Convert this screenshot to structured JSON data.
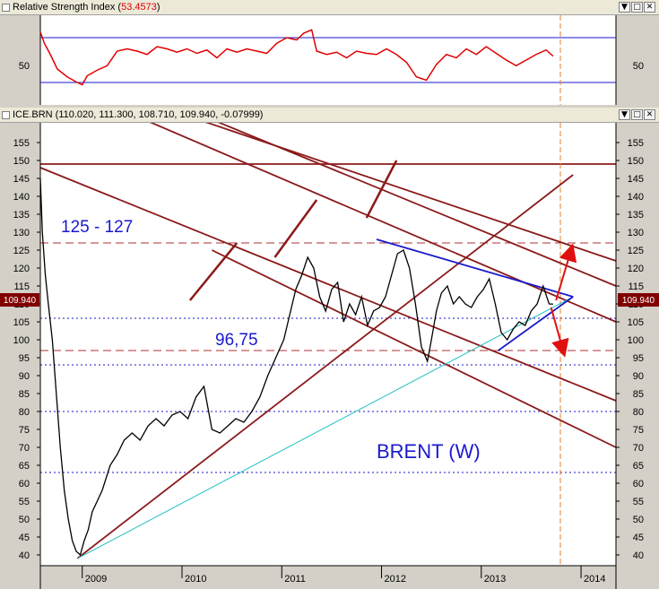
{
  "rsi_pane": {
    "title_prefix": "Relative Strength Index (",
    "title_value": "53.4573",
    "title_suffix": ")",
    "level_label": "50"
  },
  "price_pane": {
    "title": "ICE.BRN (110.020, 111.300, 108.710, 109.940, -0.07999)",
    "last_price_label": "109.940",
    "annotations": {
      "resistance": "125 - 127",
      "support": "96,75",
      "name": "BRENT (W)"
    }
  },
  "window_buttons": [
    "▼",
    "□",
    "✕"
  ],
  "colors": {
    "price": "#000000",
    "rsi": "#e00000",
    "channel": "#8b1a1a",
    "triangle": "#1a1acc",
    "support_line": "#20c0c0",
    "annotation_text": "#1a1acc",
    "arrow": "#e01010",
    "dashed_vertical": "#e08030"
  },
  "chart_data": [
    {
      "type": "line",
      "name": "Relative Strength Index",
      "current_value": 53.4573,
      "y_tick_labels": [
        "50"
      ],
      "reference_levels": [
        70,
        30
      ],
      "series": [
        {
          "name": "RSI",
          "x": [
            2008.58,
            2008.62,
            2008.68,
            2008.75,
            2008.85,
            2008.95,
            2009.0,
            2009.05,
            2009.15,
            2009.25,
            2009.35,
            2009.45,
            2009.55,
            2009.65,
            2009.75,
            2009.85,
            2009.95,
            2010.05,
            2010.15,
            2010.25,
            2010.35,
            2010.45,
            2010.55,
            2010.65,
            2010.75,
            2010.85,
            2010.95,
            2011.05,
            2011.15,
            2011.22,
            2011.3,
            2011.35,
            2011.45,
            2011.55,
            2011.65,
            2011.75,
            2011.85,
            2011.95,
            2012.05,
            2012.15,
            2012.25,
            2012.35,
            2012.45,
            2012.55,
            2012.65,
            2012.75,
            2012.85,
            2012.95,
            2013.05,
            2013.15,
            2013.25,
            2013.35,
            2013.45,
            2013.55,
            2013.65,
            2013.72
          ],
          "values": [
            75,
            65,
            55,
            42,
            35,
            30,
            28,
            36,
            41,
            45,
            58,
            60,
            58,
            55,
            62,
            60,
            57,
            60,
            56,
            59,
            52,
            60,
            57,
            60,
            58,
            56,
            65,
            70,
            68,
            74,
            77,
            58,
            55,
            57,
            52,
            58,
            56,
            55,
            60,
            55,
            48,
            35,
            32,
            46,
            55,
            52,
            60,
            55,
            62,
            56,
            50,
            45,
            50,
            55,
            59,
            53.5
          ]
        }
      ]
    },
    {
      "type": "line",
      "name": "ICE.BRN",
      "ohlc_last": {
        "open": 110.02,
        "high": 111.3,
        "low": 108.71,
        "close": 109.94,
        "change": -0.07999
      },
      "x_tick_labels": [
        "2009",
        "2010",
        "2011",
        "2012",
        "2013",
        "2014"
      ],
      "y_tick_labels": [
        "40",
        "45",
        "50",
        "55",
        "60",
        "65",
        "70",
        "75",
        "80",
        "85",
        "90",
        "95",
        "100",
        "105",
        "110",
        "115",
        "120",
        "125",
        "130",
        "135",
        "140",
        "145",
        "150",
        "155"
      ],
      "ylim": [
        38,
        158
      ],
      "xlim": [
        2008.58,
        2014.35
      ],
      "series": [
        {
          "name": "Brent weekly close",
          "x": [
            2008.58,
            2008.6,
            2008.63,
            2008.66,
            2008.7,
            2008.74,
            2008.78,
            2008.82,
            2008.86,
            2008.9,
            2008.94,
            2008.98,
            2009.02,
            2009.06,
            2009.1,
            2009.15,
            2009.2,
            2009.28,
            2009.35,
            2009.42,
            2009.5,
            2009.58,
            2009.66,
            2009.74,
            2009.82,
            2009.9,
            2009.98,
            2010.06,
            2010.14,
            2010.22,
            2010.3,
            2010.38,
            2010.46,
            2010.54,
            2010.62,
            2010.7,
            2010.78,
            2010.86,
            2010.94,
            2011.02,
            2011.08,
            2011.14,
            2011.2,
            2011.26,
            2011.32,
            2011.38,
            2011.44,
            2011.5,
            2011.56,
            2011.62,
            2011.68,
            2011.74,
            2011.8,
            2011.86,
            2011.92,
            2011.98,
            2012.04,
            2012.1,
            2012.16,
            2012.22,
            2012.28,
            2012.34,
            2012.4,
            2012.46,
            2012.5,
            2012.55,
            2012.6,
            2012.66,
            2012.72,
            2012.78,
            2012.84,
            2012.9,
            2012.96,
            2013.02,
            2013.08,
            2013.14,
            2013.2,
            2013.26,
            2013.32,
            2013.38,
            2013.44,
            2013.5,
            2013.56,
            2013.62,
            2013.68,
            2013.72
          ],
          "values": [
            145,
            130,
            118,
            110,
            100,
            85,
            70,
            58,
            50,
            44,
            41,
            40,
            44,
            47,
            52,
            55,
            58,
            65,
            68,
            72,
            74,
            72,
            76,
            78,
            76,
            79,
            80,
            78,
            84,
            87,
            75,
            74,
            76,
            78,
            77,
            80,
            84,
            90,
            95,
            100,
            107,
            114,
            118,
            123,
            120,
            112,
            108,
            114,
            116,
            105,
            110,
            107,
            112,
            104,
            108,
            109,
            112,
            118,
            124,
            125,
            120,
            110,
            98,
            94,
            100,
            108,
            113,
            115,
            110,
            112,
            110,
            109,
            112,
            114,
            117,
            110,
            102,
            100,
            103,
            105,
            104,
            108,
            110,
            115,
            110,
            109.94
          ]
        }
      ]
    }
  ]
}
